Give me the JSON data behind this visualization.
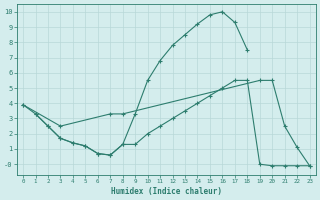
{
  "xlabel": "Humidex (Indice chaleur)",
  "bg_color": "#d4eded",
  "line_color": "#2d7d6e",
  "grid_color": "#b8d8d8",
  "xlim": [
    -0.5,
    23.5
  ],
  "ylim": [
    -0.7,
    10.5
  ],
  "xticks": [
    0,
    1,
    2,
    3,
    4,
    5,
    6,
    7,
    8,
    9,
    10,
    11,
    12,
    13,
    14,
    15,
    16,
    17,
    18,
    19,
    20,
    21,
    22,
    23
  ],
  "yticks": [
    0,
    1,
    2,
    3,
    4,
    5,
    6,
    7,
    8,
    9,
    10
  ],
  "ytick_labels": [
    "-0",
    "1",
    "2",
    "3",
    "4",
    "5",
    "6",
    "7",
    "8",
    "9",
    "10"
  ],
  "curve1_x": [
    0,
    1,
    2,
    3,
    4,
    5,
    6,
    7,
    8,
    9,
    10,
    11,
    12,
    13,
    14,
    15,
    16,
    17,
    18
  ],
  "curve1_y": [
    3.9,
    3.3,
    2.5,
    1.7,
    1.4,
    1.2,
    0.7,
    0.6,
    1.3,
    3.3,
    5.5,
    6.8,
    7.8,
    8.5,
    9.2,
    9.8,
    10.0,
    9.3,
    7.5
  ],
  "curve2_x": [
    0,
    3,
    7,
    8,
    19,
    20,
    21,
    22,
    23
  ],
  "curve2_y": [
    3.9,
    2.5,
    3.3,
    3.3,
    5.5,
    5.5,
    2.5,
    1.1,
    -0.1
  ],
  "curve3_x": [
    1,
    2,
    3,
    4,
    5,
    6,
    7,
    8,
    9,
    10,
    11,
    12,
    13,
    14,
    15,
    16,
    17,
    18,
    19,
    20,
    21,
    22,
    23
  ],
  "curve3_y": [
    3.3,
    2.5,
    1.7,
    1.4,
    1.2,
    0.7,
    0.6,
    1.3,
    1.3,
    2.0,
    2.5,
    3.0,
    3.5,
    4.0,
    4.5,
    5.0,
    5.5,
    5.5,
    0.0,
    -0.1,
    -0.1,
    -0.1,
    -0.1
  ]
}
